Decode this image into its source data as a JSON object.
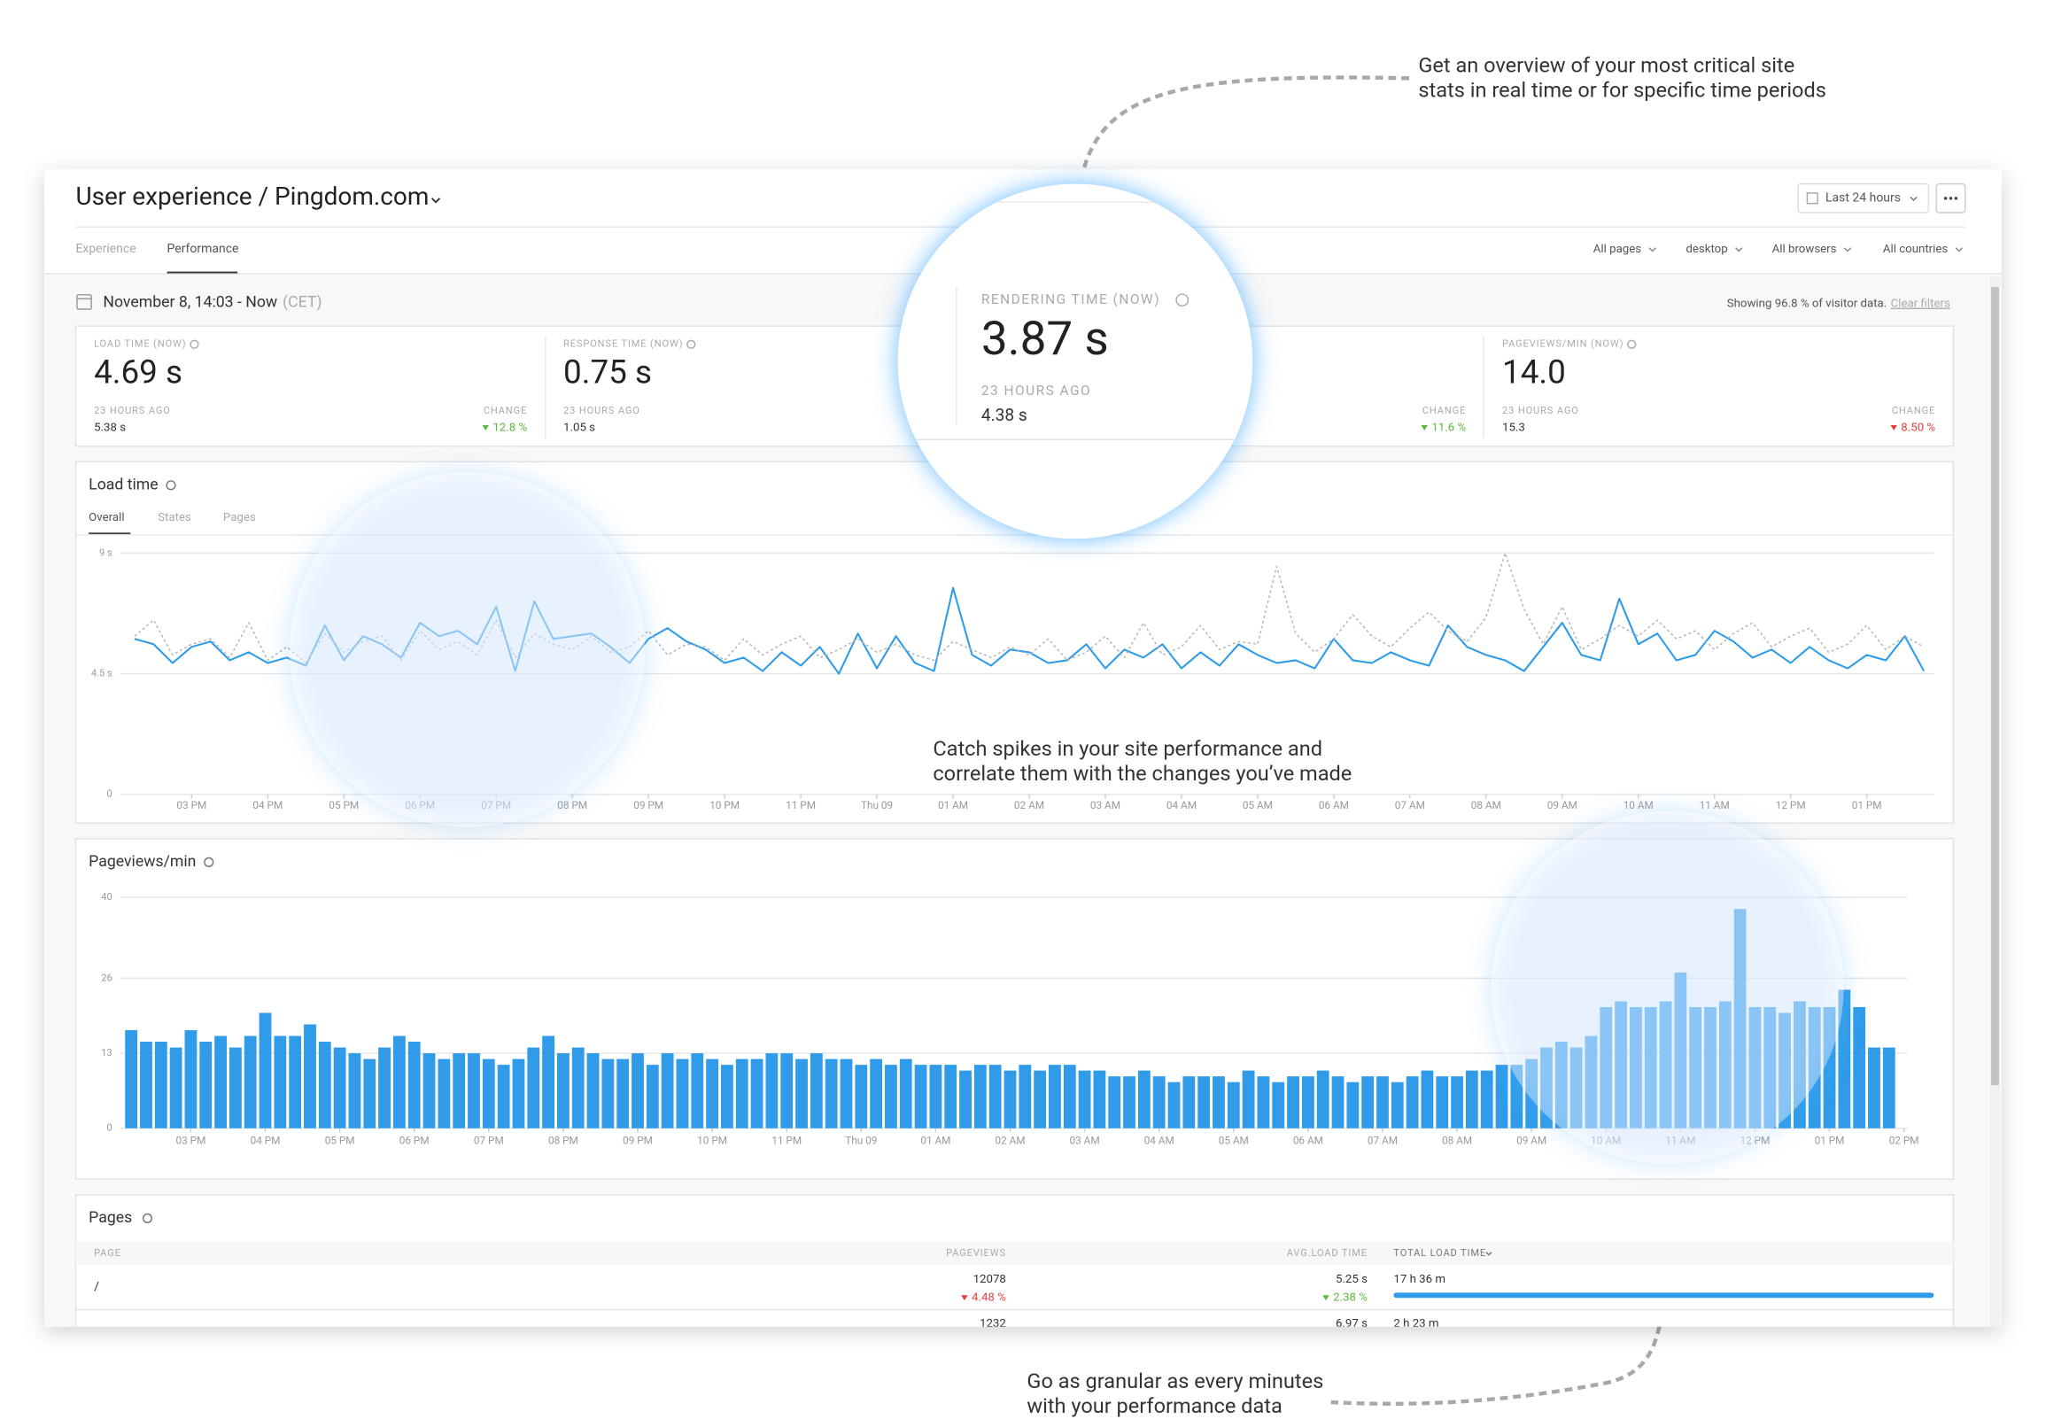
{
  "annotations": [
    {
      "lines": [
        "Get an overview of your most critical site",
        "stats in real time or for specific time periods"
      ]
    },
    {
      "lines": [
        "Catch spikes in your site performance and",
        "correlate them with the changes you’ve made"
      ]
    },
    {
      "lines": [
        "Go as granular as every minutes",
        "with your performance data"
      ]
    }
  ],
  "header": {
    "title": "User experience / Pingdom.com",
    "period_button": "Last 24 hours"
  },
  "tabs": [
    "Experience",
    "Performance"
  ],
  "filters": [
    "All pages",
    "desktop",
    "All browsers",
    "All countries"
  ],
  "date_range": "November 8, 14:03 - Now",
  "timezone": "(CET)",
  "coverage": "Showing 96.8 % of visitor data.",
  "clear_filters": "Clear filters",
  "stats": [
    {
      "label": "LOAD TIME (NOW)",
      "value": "4.69 s",
      "previous_label": "23 HOURS AGO",
      "previous": "5.38 s",
      "change_label": "CHANGE",
      "change": "12.8 %",
      "change_color": "#5cb83c"
    },
    {
      "label": "RESPONSE TIME (NOW)",
      "value": "0.75 s",
      "previous_label": "23 HOURS AGO",
      "previous": "1.05 s"
    },
    {
      "label": "RENDERING TIME (NOW)",
      "value": "3.87 s",
      "previous_label": "23 HOURS AGO",
      "previous": "4.38 s",
      "change_label": "CHANGE",
      "change": "11.6 %",
      "change_color": "#5cb83c"
    },
    {
      "label": "PAGEVIEWS/MIN (NOW)",
      "value": "14.0",
      "previous_label": "23 HOURS AGO",
      "previous": "15.3",
      "change_label": "CHANGE",
      "change": "8.50 %",
      "change_color": "#e53e3e"
    }
  ],
  "load_time_tabs": [
    "Overall",
    "States",
    "Pages"
  ],
  "chart_data": [
    {
      "type": "line",
      "title": "Load time",
      "x": [
        14.25,
        14.5,
        14.75,
        15,
        15.25,
        15.5,
        15.75,
        16,
        16.25,
        16.5,
        16.75,
        17,
        17.25,
        17.5,
        17.75,
        18,
        18.25,
        18.5,
        18.75,
        19,
        19.25,
        19.5,
        19.75,
        20,
        20.25,
        20.5,
        20.75,
        21,
        21.25,
        21.5,
        21.75,
        22,
        22.25,
        22.5,
        22.75,
        23,
        23.25,
        23.5,
        23.75,
        24,
        24.25,
        24.5,
        24.75,
        25,
        25.25,
        25.5,
        25.75,
        26,
        26.25,
        26.5,
        26.75,
        27,
        27.25,
        27.5,
        27.75,
        28,
        28.25,
        28.5,
        28.75,
        29,
        29.25,
        29.5,
        29.75,
        30,
        30.25,
        30.5,
        30.75,
        31,
        31.25,
        31.5,
        31.75,
        32,
        32.25,
        32.5,
        32.75,
        33,
        33.25,
        33.5,
        33.75,
        34,
        34.25,
        34.5,
        34.75,
        35,
        35.25,
        35.5,
        35.75,
        36,
        36.25,
        36.5,
        36.75,
        37,
        37.25,
        37.5,
        37.75
      ],
      "series": [
        {
          "color": "#2d9be8",
          "dashed": false,
          "values": [
            5.8,
            5.6,
            4.9,
            5.5,
            5.7,
            5.0,
            5.3,
            4.9,
            5.1,
            4.8,
            6.3,
            5.0,
            5.9,
            5.6,
            5.1,
            6.4,
            5.9,
            6.1,
            5.6,
            7.0,
            4.6,
            7.2,
            5.8,
            5.9,
            6.0,
            5.5,
            4.9,
            5.8,
            6.2,
            5.7,
            5.4,
            4.9,
            5.1,
            4.6,
            5.3,
            4.8,
            5.5,
            4.5,
            6.0,
            4.7,
            5.9,
            4.9,
            4.6,
            7.7,
            5.2,
            4.8,
            5.4,
            5.3,
            4.9,
            5.0,
            5.6,
            4.7,
            5.4,
            5.1,
            5.6,
            4.7,
            5.3,
            4.8,
            5.6,
            5.2,
            4.9,
            5.0,
            4.7,
            5.8,
            5.0,
            4.9,
            5.3,
            5.0,
            4.8,
            6.3,
            5.5,
            5.2,
            5.0,
            4.6,
            5.5,
            6.4,
            5.2,
            5.0,
            7.3,
            5.6,
            6.0,
            5.0,
            5.2,
            6.1,
            5.7,
            5.1,
            5.4,
            4.9,
            5.5,
            5.0,
            4.7,
            5.2,
            5.0,
            5.9,
            4.6
          ]
        },
        {
          "color": "#b5b5b5",
          "dashed": true,
          "values": [
            5.9,
            6.5,
            5.2,
            5.6,
            5.8,
            5.1,
            6.4,
            5.0,
            5.5,
            4.9,
            6.0,
            5.3,
            5.7,
            5.9,
            5.0,
            6.1,
            5.4,
            5.7,
            5.2,
            6.5,
            5.1,
            6.0,
            5.6,
            5.4,
            5.9,
            5.3,
            5.5,
            6.1,
            5.2,
            5.6,
            5.5,
            5.0,
            5.8,
            5.2,
            5.6,
            5.9,
            5.1,
            5.4,
            5.8,
            5.3,
            5.6,
            5.2,
            5.0,
            5.7,
            5.4,
            5.1,
            5.5,
            5.2,
            5.8,
            5.0,
            5.3,
            5.9,
            5.1,
            6.4,
            5.2,
            5.5,
            6.3,
            5.4,
            5.7,
            5.6,
            8.5,
            6.0,
            5.3,
            5.8,
            6.7,
            5.9,
            5.5,
            6.2,
            6.8,
            6.1,
            5.7,
            6.6,
            9.0,
            6.9,
            5.6,
            7.0,
            5.4,
            5.8,
            6.3,
            5.9,
            6.5,
            5.8,
            6.1,
            5.4,
            6.0,
            6.4,
            5.5,
            5.9,
            6.2,
            5.3,
            5.6,
            6.3,
            5.4,
            5.9,
            5.5
          ]
        }
      ],
      "xlim": [
        14.06,
        37.88
      ],
      "xticks": [
        {
          "value": 15,
          "label": "03 PM"
        },
        {
          "value": 16,
          "label": "04 PM"
        },
        {
          "value": 17,
          "label": "05 PM"
        },
        {
          "value": 18,
          "label": "06 PM"
        },
        {
          "value": 19,
          "label": "07 PM"
        },
        {
          "value": 20,
          "label": "08 PM"
        },
        {
          "value": 21,
          "label": "09 PM"
        },
        {
          "value": 22,
          "label": "10 PM"
        },
        {
          "value": 23,
          "label": "11 PM"
        },
        {
          "value": 24,
          "label": "Thu 09"
        },
        {
          "value": 25,
          "label": "01 AM"
        },
        {
          "value": 26,
          "label": "02 AM"
        },
        {
          "value": 27,
          "label": "03 AM"
        },
        {
          "value": 28,
          "label": "04 AM"
        },
        {
          "value": 29,
          "label": "05 AM"
        },
        {
          "value": 30,
          "label": "06 AM"
        },
        {
          "value": 31,
          "label": "07 AM"
        },
        {
          "value": 32,
          "label": "08 AM"
        },
        {
          "value": 33,
          "label": "09 AM"
        },
        {
          "value": 34,
          "label": "10 AM"
        },
        {
          "value": 35,
          "label": "11 AM"
        },
        {
          "value": 36,
          "label": "12 PM"
        },
        {
          "value": 37,
          "label": "01 PM"
        }
      ],
      "ylim": [
        0,
        9
      ],
      "yticks": [
        0,
        {
          "value": 4.5,
          "label": "4.5 s"
        },
        {
          "value": 9,
          "label": "9 s"
        }
      ],
      "grid": true
    },
    {
      "type": "bar",
      "title": "Pageviews/min",
      "color": "#2f9be9",
      "x": [
        14.2,
        14.4,
        14.6,
        14.8,
        15,
        15.2,
        15.4,
        15.6,
        15.8,
        16,
        16.2,
        16.4,
        16.6,
        16.8,
        17,
        17.2,
        17.4,
        17.6,
        17.8,
        18,
        18.2,
        18.4,
        18.6,
        18.8,
        19,
        19.2,
        19.4,
        19.6,
        19.8,
        20,
        20.2,
        20.4,
        20.6,
        20.8,
        21,
        21.2,
        21.4,
        21.6,
        21.8,
        22,
        22.2,
        22.4,
        22.6,
        22.8,
        23,
        23.2,
        23.4,
        23.6,
        23.8,
        24,
        24.2,
        24.4,
        24.6,
        24.8,
        25,
        25.2,
        25.4,
        25.6,
        25.8,
        26,
        26.2,
        26.4,
        26.6,
        26.8,
        27,
        27.2,
        27.4,
        27.6,
        27.8,
        28,
        28.2,
        28.4,
        28.6,
        28.8,
        29,
        29.2,
        29.4,
        29.6,
        29.8,
        30,
        30.2,
        30.4,
        30.6,
        30.8,
        31,
        31.2,
        31.4,
        31.6,
        31.8,
        32,
        32.2,
        32.4,
        32.6,
        32.8,
        33,
        33.2,
        33.4,
        33.6,
        33.8,
        34,
        34.2,
        34.4,
        34.6,
        34.8,
        35,
        35.2,
        35.4,
        35.6,
        35.8,
        36,
        36.2,
        36.4,
        36.6,
        36.8,
        37,
        37.2,
        37.4,
        37.6,
        37.8
      ],
      "values": [
        17,
        15,
        15,
        14,
        17,
        15,
        16,
        14,
        16,
        20,
        16,
        16,
        18,
        15,
        14,
        13,
        12,
        14,
        16,
        15,
        13,
        12,
        13,
        13,
        12,
        11,
        12,
        14,
        16,
        13,
        14,
        13,
        12,
        12,
        13,
        11,
        13,
        12,
        13,
        12,
        11,
        12,
        12,
        13,
        13,
        12,
        13,
        12,
        12,
        11,
        12,
        11,
        12,
        11,
        11,
        11,
        10,
        11,
        11,
        10,
        11,
        10,
        11,
        11,
        10,
        10,
        9,
        9,
        10,
        9,
        8,
        9,
        9,
        9,
        8,
        10,
        9,
        8,
        9,
        9,
        10,
        9,
        8,
        9,
        9,
        8,
        9,
        10,
        9,
        9,
        10,
        10,
        11,
        11,
        12,
        14,
        15,
        14,
        16,
        21,
        22,
        21,
        21,
        22,
        27,
        21,
        21,
        22,
        38,
        21,
        21,
        20,
        22,
        21,
        21,
        24,
        21,
        14,
        14
      ],
      "xlim": [
        14.05,
        38.05
      ],
      "xticks": [
        {
          "value": 15,
          "label": "03 PM"
        },
        {
          "value": 16,
          "label": "04 PM"
        },
        {
          "value": 17,
          "label": "05 PM"
        },
        {
          "value": 18,
          "label": "06 PM"
        },
        {
          "value": 19,
          "label": "07 PM"
        },
        {
          "value": 20,
          "label": "08 PM"
        },
        {
          "value": 21,
          "label": "09 PM"
        },
        {
          "value": 22,
          "label": "10 PM"
        },
        {
          "value": 23,
          "label": "11 PM"
        },
        {
          "value": 24,
          "label": "Thu 09"
        },
        {
          "value": 25,
          "label": "01 AM"
        },
        {
          "value": 26,
          "label": "02 AM"
        },
        {
          "value": 27,
          "label": "03 AM"
        },
        {
          "value": 28,
          "label": "04 AM"
        },
        {
          "value": 29,
          "label": "05 AM"
        },
        {
          "value": 30,
          "label": "06 AM"
        },
        {
          "value": 31,
          "label": "07 AM"
        },
        {
          "value": 32,
          "label": "08 AM"
        },
        {
          "value": 33,
          "label": "09 AM"
        },
        {
          "value": 34,
          "label": "10 AM"
        },
        {
          "value": 35,
          "label": "11 AM"
        },
        {
          "value": 36,
          "label": "12 PM"
        },
        {
          "value": 37,
          "label": "01 PM"
        },
        {
          "value": 38,
          "label": "02 PM"
        }
      ],
      "ylim": [
        0,
        40
      ],
      "yticks": [
        0,
        13,
        26,
        40
      ],
      "grid": true
    }
  ],
  "pages": {
    "title": "Pages",
    "columns": [
      "PAGE",
      "PAGEVIEWS",
      "AVG.LOAD TIME",
      "TOTAL LOAD TIME"
    ],
    "rows": [
      {
        "page": "/",
        "pageviews": "12078",
        "pageviews_change": "4.48 %",
        "avg_load_time": "5.25 s",
        "avg_load_time_change": "2.38 %",
        "total_load_time": "17 h 36 m"
      },
      {
        "pageviews": "1232",
        "avg_load_time": "6.97 s",
        "total_load_time": "2 h 23 m"
      }
    ]
  }
}
